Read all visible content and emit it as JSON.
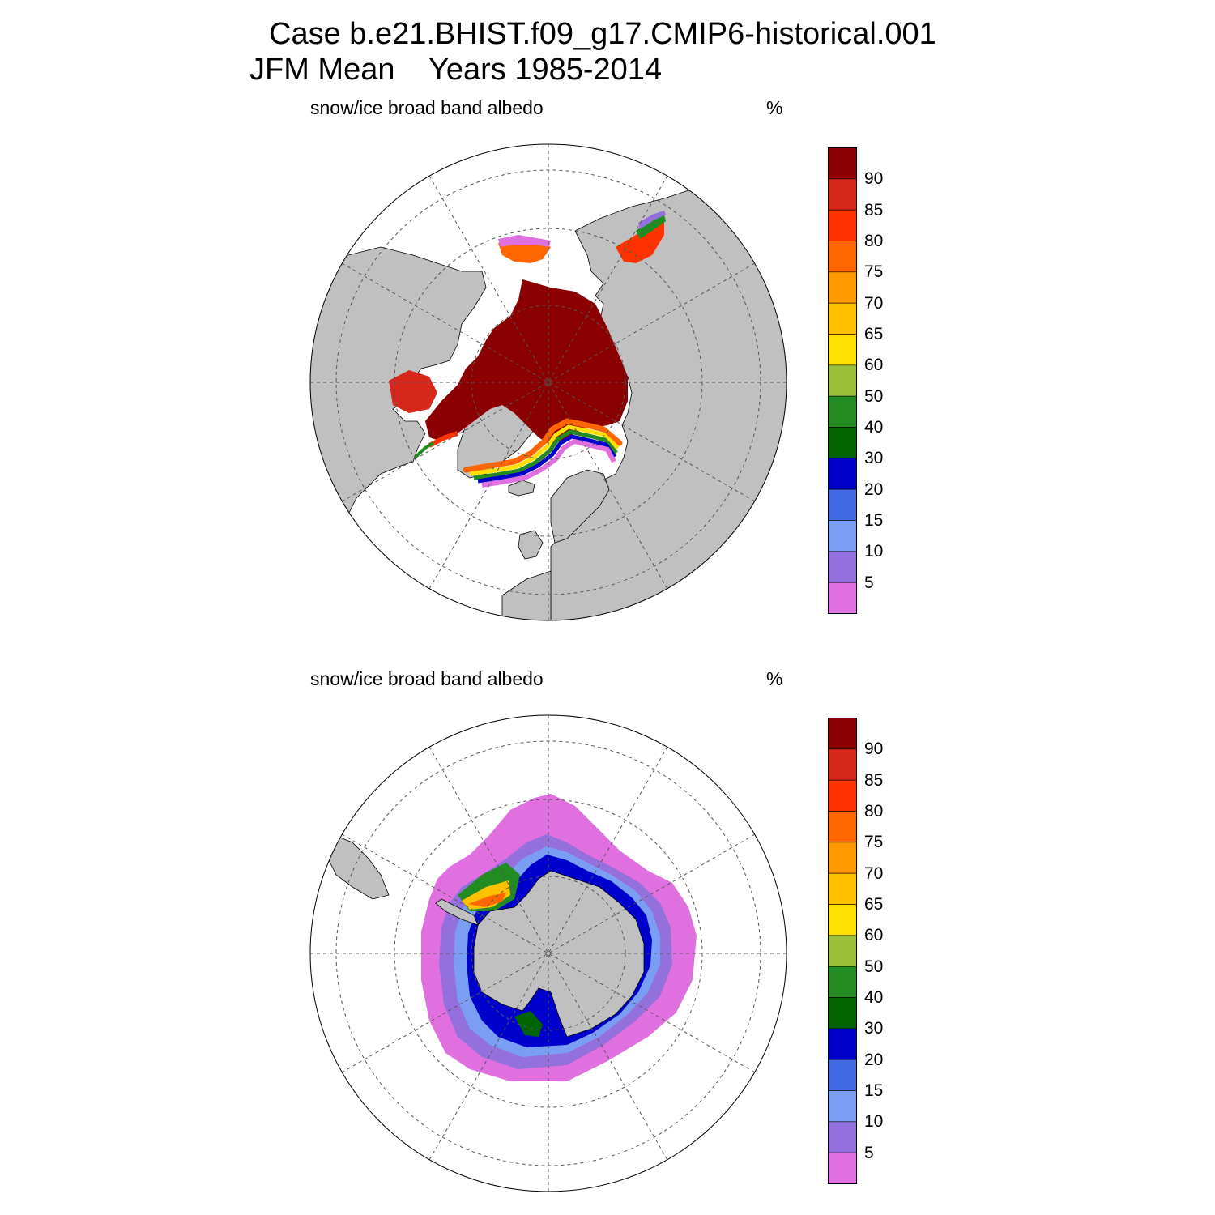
{
  "title": {
    "line1": "Case b.e21.BHIST.f09_g17.CMIP6-historical.001",
    "line2": "JFM Mean    Years 1985-2014"
  },
  "panels": [
    {
      "id": "north",
      "label": "snow/ice broad band albedo",
      "unit": "%"
    },
    {
      "id": "south",
      "label": "snow/ice broad band albedo",
      "unit": "%"
    }
  ],
  "colorbar": {
    "levels": [
      "90",
      "85",
      "80",
      "75",
      "70",
      "65",
      "60",
      "50",
      "40",
      "30",
      "20",
      "15",
      "10",
      "5"
    ],
    "colors": [
      "#8b0000",
      "#d7261a",
      "#ff3300",
      "#ff6600",
      "#ff9900",
      "#ffc000",
      "#ffe000",
      "#9ac03a",
      "#228b22",
      "#006400",
      "#0000cd",
      "#4169e1",
      "#7b9ef5",
      "#9370db",
      "#e070e0"
    ]
  },
  "map_colors": {
    "land": "#c0c0c0",
    "ocean": "#ffffff",
    "grid": "#555555"
  }
}
